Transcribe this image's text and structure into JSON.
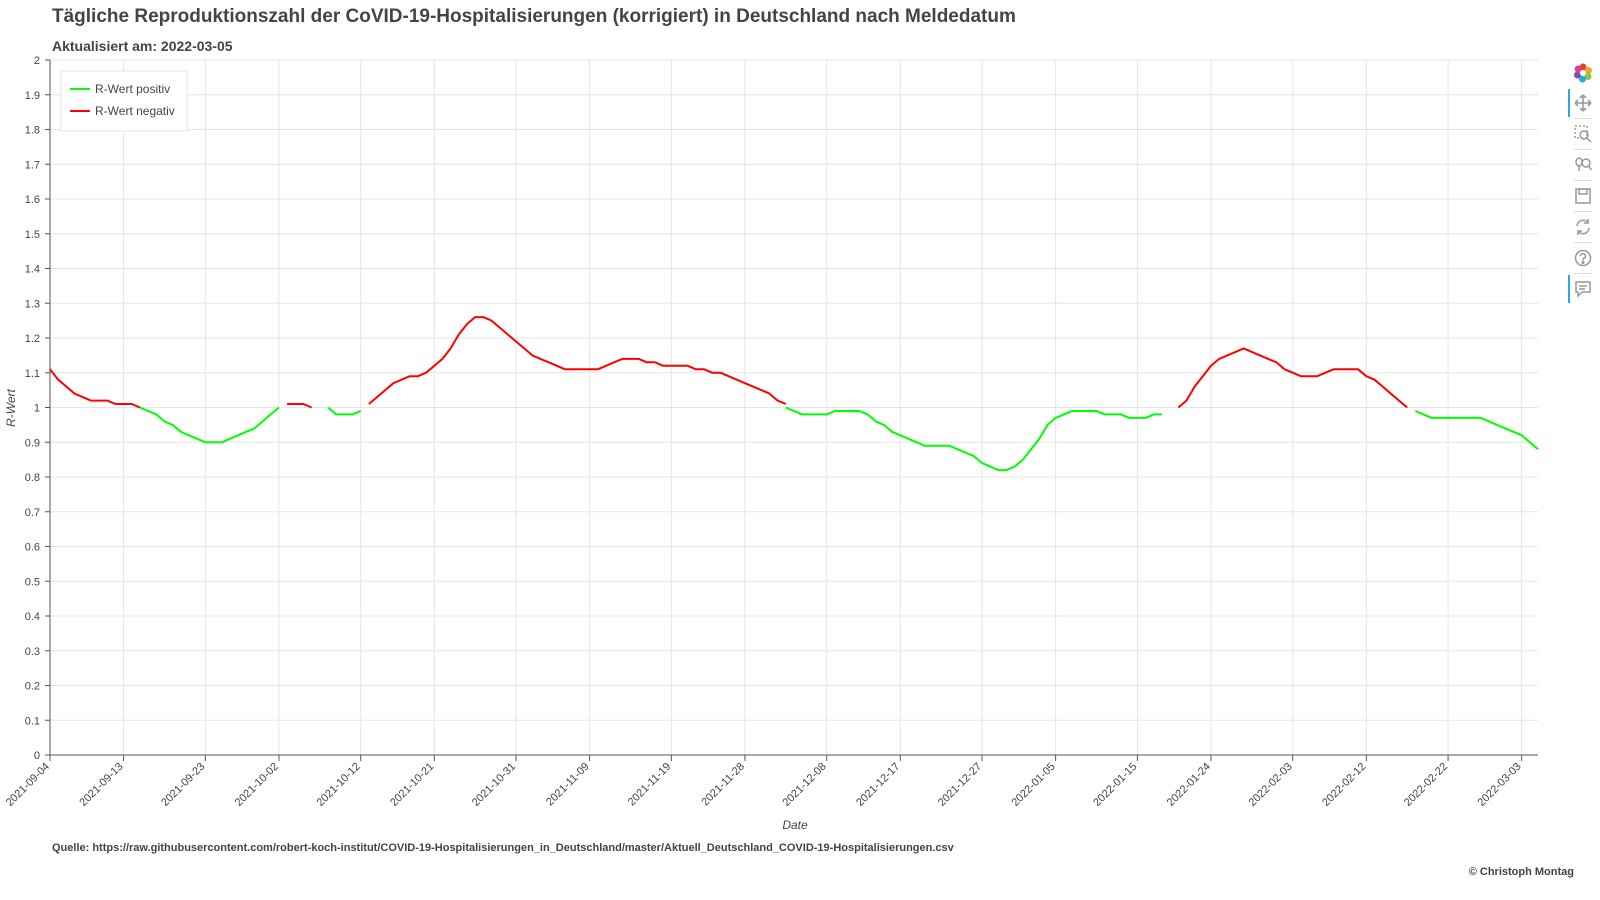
{
  "header": {
    "title": "Tägliche Reproduktionszahl der CoVID-19-Hospitalisierungen (korrigiert) in Deutschland nach Meldedatum",
    "subtitle": "Aktualisiert am: 2022-03-05"
  },
  "footer": {
    "source": "Quelle: https://raw.githubusercontent.com/robert-koch-institut/COVID-19-Hospitalisierungen_in_Deutschland/master/Aktuell_Deutschland_COVID-19-Hospitalisierungen.csv",
    "copyright": "© Christoph Montag"
  },
  "toolbar": {
    "tools": [
      {
        "icon": "bokeh-logo-icon",
        "active": false
      },
      {
        "icon": "pan-icon",
        "active": true
      },
      {
        "icon": "box-zoom-icon",
        "active": false
      },
      {
        "icon": "wheel-zoom-icon",
        "active": false
      },
      {
        "icon": "save-icon",
        "active": false
      },
      {
        "icon": "reset-icon",
        "active": false
      },
      {
        "icon": "help-icon",
        "active": false
      },
      {
        "icon": "hover-icon",
        "active": true
      }
    ]
  },
  "chart_data": {
    "type": "line",
    "xlabel": "Date",
    "ylabel": "R-Wert",
    "ylim": [
      0,
      2
    ],
    "xlim": [
      "2021-09-04",
      "2022-03-05"
    ],
    "yticks": [
      "0",
      "0.1",
      "0.2",
      "0.3",
      "0.4",
      "0.5",
      "0.6",
      "0.7",
      "0.8",
      "0.9",
      "1",
      "1.1",
      "1.2",
      "1.3",
      "1.4",
      "1.5",
      "1.6",
      "1.7",
      "1.8",
      "1.9",
      "2"
    ],
    "xticks": [
      "2021-09-04",
      "2021-09-13",
      "2021-09-23",
      "2021-10-02",
      "2021-10-12",
      "2021-10-21",
      "2021-10-31",
      "2021-11-09",
      "2021-11-19",
      "2021-11-28",
      "2021-12-08",
      "2021-12-17",
      "2021-12-27",
      "2022-01-05",
      "2022-01-15",
      "2022-01-24",
      "2022-02-03",
      "2022-02-12",
      "2022-02-22",
      "2022-03-03"
    ],
    "grid": true,
    "legend_position": "top-left",
    "series": [
      {
        "name": "R-Wert positiv",
        "color": "#00ff00",
        "segments": [
          [
            [
              "2021-09-15",
              1.0
            ],
            [
              "2021-09-16",
              0.99
            ],
            [
              "2021-09-17",
              0.98
            ],
            [
              "2021-09-18",
              0.96
            ],
            [
              "2021-09-19",
              0.95
            ],
            [
              "2021-09-20",
              0.93
            ],
            [
              "2021-09-21",
              0.92
            ],
            [
              "2021-09-22",
              0.91
            ],
            [
              "2021-09-23",
              0.9
            ],
            [
              "2021-09-24",
              0.9
            ],
            [
              "2021-09-25",
              0.9
            ],
            [
              "2021-09-26",
              0.91
            ],
            [
              "2021-09-27",
              0.92
            ],
            [
              "2021-09-28",
              0.93
            ],
            [
              "2021-09-29",
              0.94
            ],
            [
              "2021-09-30",
              0.96
            ],
            [
              "2021-10-01",
              0.98
            ],
            [
              "2021-10-02",
              1.0
            ]
          ],
          [
            [
              "2021-10-08",
              1.0
            ],
            [
              "2021-10-09",
              0.98
            ],
            [
              "2021-10-10",
              0.98
            ],
            [
              "2021-10-11",
              0.98
            ],
            [
              "2021-10-12",
              0.99
            ]
          ],
          [
            [
              "2021-12-03",
              1.0
            ],
            [
              "2021-12-04",
              0.99
            ],
            [
              "2021-12-05",
              0.98
            ],
            [
              "2021-12-06",
              0.98
            ],
            [
              "2021-12-07",
              0.98
            ],
            [
              "2021-12-08",
              0.98
            ],
            [
              "2021-12-09",
              0.99
            ],
            [
              "2021-12-10",
              0.99
            ],
            [
              "2021-12-11",
              0.99
            ],
            [
              "2021-12-12",
              0.99
            ],
            [
              "2021-12-13",
              0.98
            ],
            [
              "2021-12-14",
              0.96
            ],
            [
              "2021-12-15",
              0.95
            ],
            [
              "2021-12-16",
              0.93
            ],
            [
              "2021-12-17",
              0.92
            ],
            [
              "2021-12-18",
              0.91
            ],
            [
              "2021-12-19",
              0.9
            ],
            [
              "2021-12-20",
              0.89
            ],
            [
              "2021-12-21",
              0.89
            ],
            [
              "2021-12-22",
              0.89
            ],
            [
              "2021-12-23",
              0.89
            ],
            [
              "2021-12-24",
              0.88
            ],
            [
              "2021-12-25",
              0.87
            ],
            [
              "2021-12-26",
              0.86
            ],
            [
              "2021-12-27",
              0.84
            ],
            [
              "2021-12-28",
              0.83
            ],
            [
              "2021-12-29",
              0.82
            ],
            [
              "2021-12-30",
              0.82
            ],
            [
              "2021-12-31",
              0.83
            ],
            [
              "2022-01-01",
              0.85
            ],
            [
              "2022-01-02",
              0.88
            ],
            [
              "2022-01-03",
              0.91
            ],
            [
              "2022-01-04",
              0.95
            ],
            [
              "2022-01-05",
              0.97
            ],
            [
              "2022-01-06",
              0.98
            ],
            [
              "2022-01-07",
              0.99
            ],
            [
              "2022-01-08",
              0.99
            ],
            [
              "2022-01-09",
              0.99
            ],
            [
              "2022-01-10",
              0.99
            ],
            [
              "2022-01-11",
              0.98
            ],
            [
              "2022-01-12",
              0.98
            ],
            [
              "2022-01-13",
              0.98
            ],
            [
              "2022-01-14",
              0.97
            ],
            [
              "2022-01-15",
              0.97
            ],
            [
              "2022-01-16",
              0.97
            ],
            [
              "2022-01-17",
              0.98
            ],
            [
              "2022-01-18",
              0.98
            ]
          ],
          [
            [
              "2022-02-18",
              0.99
            ],
            [
              "2022-02-19",
              0.98
            ],
            [
              "2022-02-20",
              0.97
            ],
            [
              "2022-02-21",
              0.97
            ],
            [
              "2022-02-22",
              0.97
            ],
            [
              "2022-02-23",
              0.97
            ],
            [
              "2022-02-24",
              0.97
            ],
            [
              "2022-02-25",
              0.97
            ],
            [
              "2022-02-26",
              0.97
            ],
            [
              "2022-02-27",
              0.96
            ],
            [
              "2022-02-28",
              0.95
            ],
            [
              "2022-03-01",
              0.94
            ],
            [
              "2022-03-02",
              0.93
            ],
            [
              "2022-03-03",
              0.92
            ],
            [
              "2022-03-04",
              0.9
            ],
            [
              "2022-03-05",
              0.88
            ]
          ]
        ]
      },
      {
        "name": "R-Wert negativ",
        "color": "#ff0000",
        "segments": [
          [
            [
              "2021-09-04",
              1.11
            ],
            [
              "2021-09-05",
              1.08
            ],
            [
              "2021-09-06",
              1.06
            ],
            [
              "2021-09-07",
              1.04
            ],
            [
              "2021-09-08",
              1.03
            ],
            [
              "2021-09-09",
              1.02
            ],
            [
              "2021-09-10",
              1.02
            ],
            [
              "2021-09-11",
              1.02
            ],
            [
              "2021-09-12",
              1.01
            ],
            [
              "2021-09-13",
              1.01
            ],
            [
              "2021-09-14",
              1.01
            ],
            [
              "2021-09-15",
              1.0
            ]
          ],
          [
            [
              "2021-10-03",
              1.01
            ],
            [
              "2021-10-04",
              1.01
            ],
            [
              "2021-10-05",
              1.01
            ],
            [
              "2021-10-06",
              1.0
            ]
          ],
          [
            [
              "2021-10-13",
              1.01
            ],
            [
              "2021-10-14",
              1.03
            ],
            [
              "2021-10-15",
              1.05
            ],
            [
              "2021-10-16",
              1.07
            ],
            [
              "2021-10-17",
              1.08
            ],
            [
              "2021-10-18",
              1.09
            ],
            [
              "2021-10-19",
              1.09
            ],
            [
              "2021-10-20",
              1.1
            ],
            [
              "2021-10-21",
              1.12
            ],
            [
              "2021-10-22",
              1.14
            ],
            [
              "2021-10-23",
              1.17
            ],
            [
              "2021-10-24",
              1.21
            ],
            [
              "2021-10-25",
              1.24
            ],
            [
              "2021-10-26",
              1.26
            ],
            [
              "2021-10-27",
              1.26
            ],
            [
              "2021-10-28",
              1.25
            ],
            [
              "2021-10-29",
              1.23
            ],
            [
              "2021-10-30",
              1.21
            ],
            [
              "2021-10-31",
              1.19
            ],
            [
              "2021-11-01",
              1.17
            ],
            [
              "2021-11-02",
              1.15
            ],
            [
              "2021-11-03",
              1.14
            ],
            [
              "2021-11-04",
              1.13
            ],
            [
              "2021-11-05",
              1.12
            ],
            [
              "2021-11-06",
              1.11
            ],
            [
              "2021-11-07",
              1.11
            ],
            [
              "2021-11-08",
              1.11
            ],
            [
              "2021-11-09",
              1.11
            ],
            [
              "2021-11-10",
              1.11
            ],
            [
              "2021-11-11",
              1.12
            ],
            [
              "2021-11-12",
              1.13
            ],
            [
              "2021-11-13",
              1.14
            ],
            [
              "2021-11-14",
              1.14
            ],
            [
              "2021-11-15",
              1.14
            ],
            [
              "2021-11-16",
              1.13
            ],
            [
              "2021-11-17",
              1.13
            ],
            [
              "2021-11-18",
              1.12
            ],
            [
              "2021-11-19",
              1.12
            ],
            [
              "2021-11-20",
              1.12
            ],
            [
              "2021-11-21",
              1.12
            ],
            [
              "2021-11-22",
              1.11
            ],
            [
              "2021-11-23",
              1.11
            ],
            [
              "2021-11-24",
              1.1
            ],
            [
              "2021-11-25",
              1.1
            ],
            [
              "2021-11-26",
              1.09
            ],
            [
              "2021-11-27",
              1.08
            ],
            [
              "2021-11-28",
              1.07
            ],
            [
              "2021-11-29",
              1.06
            ],
            [
              "2021-11-30",
              1.05
            ],
            [
              "2021-12-01",
              1.04
            ],
            [
              "2021-12-02",
              1.02
            ],
            [
              "2021-12-03",
              1.01
            ]
          ],
          [
            [
              "2022-01-20",
              1.0
            ],
            [
              "2022-01-21",
              1.02
            ],
            [
              "2022-01-22",
              1.06
            ],
            [
              "2022-01-23",
              1.09
            ],
            [
              "2022-01-24",
              1.12
            ],
            [
              "2022-01-25",
              1.14
            ],
            [
              "2022-01-26",
              1.15
            ],
            [
              "2022-01-27",
              1.16
            ],
            [
              "2022-01-28",
              1.17
            ],
            [
              "2022-01-29",
              1.16
            ],
            [
              "2022-01-30",
              1.15
            ],
            [
              "2022-01-31",
              1.14
            ],
            [
              "2022-02-01",
              1.13
            ],
            [
              "2022-02-02",
              1.11
            ],
            [
              "2022-02-03",
              1.1
            ],
            [
              "2022-02-04",
              1.09
            ],
            [
              "2022-02-05",
              1.09
            ],
            [
              "2022-02-06",
              1.09
            ],
            [
              "2022-02-07",
              1.1
            ],
            [
              "2022-02-08",
              1.11
            ],
            [
              "2022-02-09",
              1.11
            ],
            [
              "2022-02-10",
              1.11
            ],
            [
              "2022-02-11",
              1.11
            ],
            [
              "2022-02-12",
              1.09
            ],
            [
              "2022-02-13",
              1.08
            ],
            [
              "2022-02-14",
              1.06
            ],
            [
              "2022-02-15",
              1.04
            ],
            [
              "2022-02-16",
              1.02
            ],
            [
              "2022-02-17",
              1.0
            ]
          ]
        ]
      }
    ]
  }
}
